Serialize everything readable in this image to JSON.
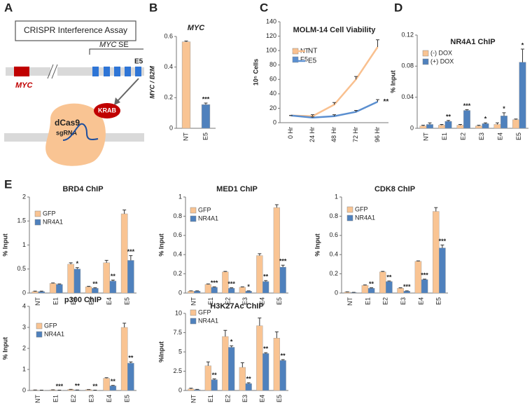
{
  "figure": {
    "panel_labels": [
      "A",
      "B",
      "C",
      "D",
      "E"
    ],
    "diagram": {
      "title": "CRISPR Interference Assay",
      "se_gene": "MYC",
      "se_suffix": "SE",
      "enhancer": "E5",
      "gene": "MYC",
      "repressor": "KRAB",
      "protein": "dCas9",
      "guide": "sgRNA"
    }
  },
  "chart_data": [
    {
      "type": "bar",
      "title": "MYC",
      "y_label": "MYC / B2M",
      "categories": [
        "NT",
        "E5"
      ],
      "values": [
        0.565,
        0.155
      ],
      "errors": [
        0.005,
        0.01
      ],
      "colors": [
        "#f9c493",
        "#4f81bd"
      ],
      "significance": [
        null,
        "***"
      ],
      "ylim": [
        0,
        0.6
      ],
      "yticks": [
        0,
        0.2,
        0.4,
        0.6
      ]
    },
    {
      "type": "line",
      "title": "MOLM-14 Cell Viability",
      "y_label": "10⁵ Cells",
      "categories": [
        "0 Hr",
        "24 Hr",
        "48 Hr",
        "72 Hr",
        "96 Hr"
      ],
      "series": [
        {
          "name": "NT",
          "color": "#f9c08f",
          "values": [
            10,
            9,
            25,
            60,
            105
          ],
          "errors": [
            0,
            2,
            3,
            4,
            10
          ]
        },
        {
          "name": "E5",
          "color": "#5b8fd0",
          "values": [
            10,
            7,
            9,
            15,
            29
          ],
          "errors": [
            0,
            1,
            2,
            2,
            3
          ]
        }
      ],
      "annotation": "**",
      "legend": "upper left",
      "ylim": [
        0,
        140
      ],
      "yticks": [
        0,
        20,
        40,
        60,
        80,
        100,
        120,
        140
      ]
    },
    {
      "type": "bar",
      "title": "NR4A1 ChIP",
      "y_label": "% Input",
      "categories": [
        "NT",
        "E1",
        "E2",
        "E3",
        "E4",
        "E5"
      ],
      "series": [
        {
          "name": "(-) DOX",
          "color": "#f9c493",
          "values": [
            0.003,
            0.004,
            0.004,
            0.003,
            0.005,
            0.011
          ],
          "errors": [
            0.001,
            0.001,
            0.001,
            0.001,
            0.002,
            0.001
          ]
        },
        {
          "name": "(+) DOX",
          "color": "#4f81bd",
          "values": [
            0.005,
            0.009,
            0.023,
            0.006,
            0.016,
            0.085
          ],
          "errors": [
            0.002,
            0.001,
            0.001,
            0.001,
            0.004,
            0.017
          ]
        }
      ],
      "significance": [
        null,
        "**",
        "***",
        "*",
        "*",
        "*"
      ],
      "legend": "upper left",
      "ylim": [
        0,
        0.12
      ],
      "yticks": [
        0,
        0.04,
        0.08,
        0.12
      ]
    },
    {
      "type": "bar",
      "title": "BRD4 ChIP",
      "y_label": "% Input",
      "categories": [
        "NT",
        "E1",
        "E2",
        "E3",
        "E4",
        "E5"
      ],
      "series": [
        {
          "name": "GFP",
          "color": "#f9c493",
          "values": [
            0.03,
            0.2,
            0.6,
            0.13,
            0.63,
            1.65
          ],
          "errors": [
            0.01,
            0.01,
            0.03,
            0.01,
            0.05,
            0.08
          ]
        },
        {
          "name": "NR4A1",
          "color": "#4f81bd",
          "values": [
            0.03,
            0.18,
            0.5,
            0.1,
            0.25,
            0.68
          ],
          "errors": [
            0.01,
            0.01,
            0.03,
            0.01,
            0.02,
            0.1
          ]
        }
      ],
      "significance": [
        null,
        null,
        "*",
        "**",
        "**",
        "***"
      ],
      "legend": "upper left",
      "ylim": [
        0,
        2
      ],
      "yticks": [
        0,
        0.5,
        1,
        1.5,
        2
      ]
    },
    {
      "type": "bar",
      "title": "MED1 ChIP",
      "y_label": "% Input",
      "categories": [
        "NT",
        "E1",
        "E2",
        "E3",
        "E4",
        "E5"
      ],
      "series": [
        {
          "name": "GFP",
          "color": "#f9c493",
          "values": [
            0.02,
            0.09,
            0.22,
            0.06,
            0.39,
            0.89
          ],
          "errors": [
            0.003,
            0.005,
            0.005,
            0.005,
            0.02,
            0.03
          ]
        },
        {
          "name": "NR4A1",
          "color": "#4f81bd",
          "values": [
            0.02,
            0.06,
            0.05,
            0.02,
            0.12,
            0.27
          ],
          "errors": [
            0.003,
            0.005,
            0.005,
            0.003,
            0.01,
            0.02
          ]
        }
      ],
      "significance": [
        null,
        "***",
        "***",
        "*",
        "**",
        "***"
      ],
      "legend": "upper left",
      "ylim": [
        0,
        1
      ],
      "yticks": [
        0,
        0.2,
        0.4,
        0.6,
        0.8,
        1
      ]
    },
    {
      "type": "bar",
      "title": "CDK8 ChIP",
      "y_label": "% Input",
      "categories": [
        "NT",
        "E1",
        "E2",
        "E3",
        "E4",
        "E5"
      ],
      "series": [
        {
          "name": "GFP",
          "color": "#f9c493",
          "values": [
            0.01,
            0.08,
            0.22,
            0.05,
            0.33,
            0.85
          ],
          "errors": [
            0.003,
            0.005,
            0.005,
            0.005,
            0.005,
            0.04
          ]
        },
        {
          "name": "NR4A1",
          "color": "#4f81bd",
          "values": [
            0.005,
            0.05,
            0.12,
            0.02,
            0.14,
            0.47
          ],
          "errors": [
            0.002,
            0.005,
            0.005,
            0.003,
            0.005,
            0.03
          ]
        }
      ],
      "significance": [
        null,
        "**",
        "**",
        "***",
        "***",
        "***"
      ],
      "legend": "upper left",
      "ylim": [
        0,
        1
      ],
      "yticks": [
        0,
        0.2,
        0.4,
        0.6,
        0.8,
        1
      ]
    },
    {
      "type": "bar",
      "title": "p300 ChIP",
      "y_label": "% Input",
      "categories": [
        "NT",
        "E1",
        "E2",
        "E3",
        "E4",
        "E5"
      ],
      "series": [
        {
          "name": "GFP",
          "color": "#f9c493",
          "values": [
            0.02,
            0.03,
            0.05,
            0.04,
            0.58,
            3.0
          ],
          "errors": [
            0.005,
            0.005,
            0.005,
            0.005,
            0.03,
            0.2
          ]
        },
        {
          "name": "NR4A1",
          "color": "#4f81bd",
          "values": [
            0.01,
            0.01,
            0.02,
            0.01,
            0.22,
            1.3
          ],
          "errors": [
            0.005,
            0.005,
            0.005,
            0.005,
            0.02,
            0.06
          ]
        }
      ],
      "significance": [
        null,
        "***",
        "**",
        "**",
        "**",
        "**"
      ],
      "legend": "upper left",
      "ylim": [
        0,
        4
      ],
      "yticks": [
        0,
        1,
        2,
        3,
        4
      ]
    },
    {
      "type": "bar",
      "title": "H3K27Ac ChIP",
      "y_label": "%Input",
      "categories": [
        "NT",
        "E1",
        "E2",
        "E3",
        "E4",
        "E5"
      ],
      "series": [
        {
          "name": "GFP",
          "color": "#f9c493",
          "values": [
            0.2,
            3.2,
            7.0,
            3.0,
            8.4,
            6.8
          ],
          "errors": [
            0.1,
            0.5,
            0.8,
            0.6,
            1.0,
            0.8
          ]
        },
        {
          "name": "NR4A1",
          "color": "#4f81bd",
          "values": [
            0.1,
            1.4,
            5.6,
            0.9,
            4.8,
            3.9
          ],
          "errors": [
            0.05,
            0.1,
            0.2,
            0.1,
            0.1,
            0.1
          ]
        }
      ],
      "significance": [
        null,
        "**",
        "*",
        "**",
        "**",
        "**"
      ],
      "legend": "upper left",
      "ylim": [
        0,
        10
      ],
      "yticks": [
        0,
        2.5,
        5,
        7.5,
        10
      ]
    }
  ]
}
